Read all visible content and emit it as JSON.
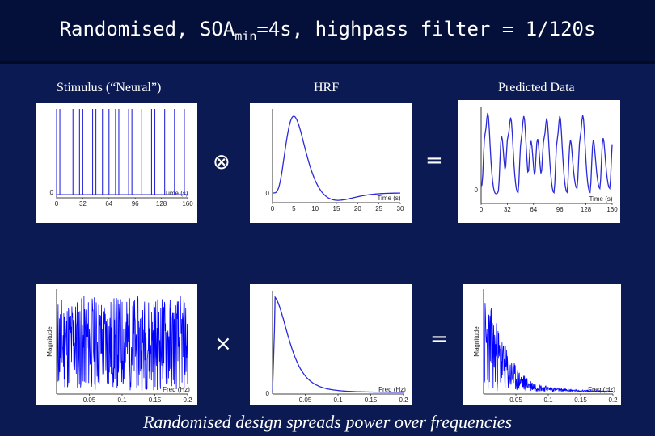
{
  "title": {
    "main": "Randomised, SOA",
    "sub": "min",
    "rest": "=4s, highpass filter = 1/120s"
  },
  "labels": {
    "stimulus": "Stimulus (“Neural”)",
    "hrf": "HRF",
    "predicted": "Predicted Data"
  },
  "operators": {
    "convolve": "⊗",
    "multiply": "×",
    "equals_top": "=",
    "equals_bottom": "="
  },
  "caption": "Randomised design spreads power over frequencies",
  "chart_data": [
    {
      "type": "line",
      "id": "stimulus-time",
      "xlabel": "Time (s)",
      "ylabel": "",
      "x_ticks": [
        "0",
        "32",
        "64",
        "96",
        "128",
        "160"
      ],
      "y_ticks": [
        "0"
      ],
      "xlim": [
        0,
        160
      ],
      "series_color": "#2a2ad8"
    },
    {
      "type": "line",
      "id": "hrf-time",
      "xlabel": "Time (s)",
      "ylabel": "",
      "x_ticks": [
        "0",
        "5",
        "10",
        "15",
        "20",
        "25",
        "30"
      ],
      "y_ticks": [
        "0"
      ],
      "xlim": [
        0,
        30
      ],
      "series_color": "#2a2ad8"
    },
    {
      "type": "line",
      "id": "predicted-time",
      "xlabel": "Time (s)",
      "ylabel": "",
      "x_ticks": [
        "0",
        "32",
        "64",
        "96",
        "128",
        "160"
      ],
      "y_ticks": [
        "0"
      ],
      "xlim": [
        0,
        160
      ],
      "series_color": "#2a2ad8"
    },
    {
      "type": "line",
      "id": "stimulus-freq",
      "xlabel": "Freq (Hz)",
      "ylabel": "Magnitude",
      "x_ticks": [
        "0.05",
        "0.1",
        "0.15",
        "0.2"
      ],
      "xlim": [
        0,
        0.2
      ],
      "series_color": "#0000ff"
    },
    {
      "type": "line",
      "id": "hrf-freq",
      "xlabel": "Freq (Hz)",
      "ylabel": "",
      "x_ticks": [
        "0.05",
        "0.1",
        "0.15",
        "0.2"
      ],
      "y_ticks": [
        "0"
      ],
      "xlim": [
        0,
        0.2
      ],
      "series_color": "#2a2ad8"
    },
    {
      "type": "line",
      "id": "predicted-freq",
      "xlabel": "Freq (Hz)",
      "ylabel": "Magnitude",
      "x_ticks": [
        "0.05",
        "0.1",
        "0.15",
        "0.2"
      ],
      "xlim": [
        0,
        0.2
      ],
      "series_color": "#0000ff"
    }
  ]
}
